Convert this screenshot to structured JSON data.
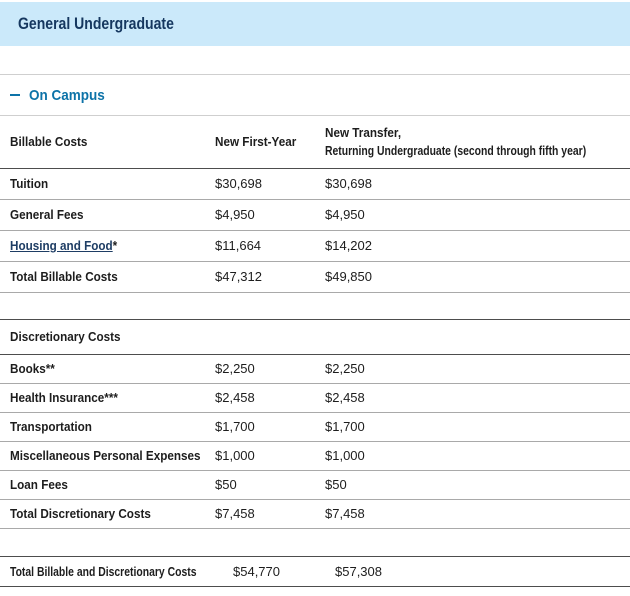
{
  "banner": {
    "title": "General Undergraduate"
  },
  "section": {
    "collapse_icon_glyph": "minus",
    "label": "On Campus"
  },
  "colors": {
    "banner_bg": "#cbe9fa",
    "banner_text": "#15375f",
    "accent_blue": "#0d73a8",
    "link_navy": "#1e3d64",
    "rule_dark": "#4d4d4d",
    "rule_light": "#a9a9a9"
  },
  "billable_table": {
    "col1_header": "Billable Costs",
    "col2_header": "New First-Year",
    "col3_header_line1": "New Transfer,",
    "col3_header_line2": "Returning Undergraduate (second through fifth year)",
    "rows": [
      {
        "label": "Tuition",
        "first_year": "$30,698",
        "transfer": "$30,698"
      },
      {
        "label": "General Fees",
        "first_year": "$4,950",
        "transfer": "$4,950"
      },
      {
        "label": "Housing and Food",
        "suffix": "*",
        "first_year": "$11,664",
        "transfer": "$14,202"
      },
      {
        "label": "Total Billable Costs",
        "first_year": "$47,312",
        "transfer": "$49,850"
      }
    ]
  },
  "discretionary_table": {
    "header": "Discretionary Costs",
    "rows": [
      {
        "label": "Books**",
        "first_year": "$2,250",
        "transfer": "$2,250"
      },
      {
        "label": "Health Insurance***",
        "first_year": "$2,458",
        "transfer": "$2,458"
      },
      {
        "label": "Transportation",
        "first_year": "$1,700",
        "transfer": "$1,700"
      },
      {
        "label": "Miscellaneous Personal Expenses",
        "first_year": "$1,000",
        "transfer": "$1,000"
      },
      {
        "label": "Loan Fees",
        "first_year": "$50",
        "transfer": "$50"
      },
      {
        "label": "Total Discretionary Costs",
        "first_year": "$7,458",
        "transfer": "$7,458"
      }
    ]
  },
  "grand_total": {
    "label": "Total Billable and Discretionary Costs",
    "first_year": "$54,770",
    "transfer": "$57,308"
  }
}
